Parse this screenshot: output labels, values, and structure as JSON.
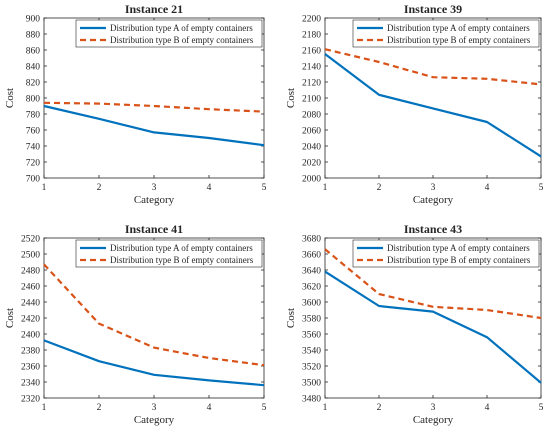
{
  "chart_data": [
    {
      "type": "line",
      "title": "Instance 21",
      "xlabel": "Category",
      "ylabel": "Cost",
      "x": [
        1,
        2,
        3,
        4,
        5
      ],
      "xlim": [
        1,
        5
      ],
      "ylim": [
        700,
        900
      ],
      "yticks": [
        700,
        720,
        740,
        760,
        780,
        800,
        820,
        840,
        860,
        880,
        900
      ],
      "legend_position": "top-right",
      "grid": false,
      "series": [
        {
          "name": "Distribution type A of empty containers",
          "values": [
            790,
            774,
            757,
            750,
            741
          ],
          "color": "#0072BD",
          "style": "solid"
        },
        {
          "name": "Distribution type B of empty containers",
          "values": [
            794,
            793,
            790,
            786,
            783
          ],
          "color": "#D95319",
          "style": "dashed"
        }
      ]
    },
    {
      "type": "line",
      "title": "Instance 39",
      "xlabel": "Category",
      "ylabel": "Cost",
      "x": [
        1,
        2,
        3,
        4,
        5
      ],
      "xlim": [
        1,
        5
      ],
      "ylim": [
        2000,
        2200
      ],
      "yticks": [
        2000,
        2020,
        2040,
        2060,
        2080,
        2100,
        2120,
        2140,
        2160,
        2180,
        2200
      ],
      "legend_position": "top-right",
      "grid": false,
      "series": [
        {
          "name": "Distribution type A of empty containers",
          "values": [
            2155,
            2104,
            2087,
            2070,
            2027
          ],
          "color": "#0072BD",
          "style": "solid"
        },
        {
          "name": "Distribution type B of empty containers",
          "values": [
            2161,
            2145,
            2126,
            2124,
            2117
          ],
          "color": "#D95319",
          "style": "dashed"
        }
      ]
    },
    {
      "type": "line",
      "title": "Instance 41",
      "xlabel": "Category",
      "ylabel": "Cost",
      "x": [
        1,
        2,
        3,
        4,
        5
      ],
      "xlim": [
        1,
        5
      ],
      "ylim": [
        2320,
        2520
      ],
      "yticks": [
        2320,
        2340,
        2360,
        2380,
        2400,
        2420,
        2440,
        2460,
        2480,
        2500,
        2520
      ],
      "legend_position": "top-right",
      "grid": false,
      "series": [
        {
          "name": "Distribution type A of empty containers",
          "values": [
            2392,
            2366,
            2349,
            2342,
            2336
          ],
          "color": "#0072BD",
          "style": "solid"
        },
        {
          "name": "Distribution type B of empty containers",
          "values": [
            2487,
            2413,
            2383,
            2370,
            2361
          ],
          "color": "#D95319",
          "style": "dashed"
        }
      ]
    },
    {
      "type": "line",
      "title": "Instance 43",
      "xlabel": "Category",
      "ylabel": "Cost",
      "x": [
        1,
        2,
        3,
        4,
        5
      ],
      "xlim": [
        1,
        5
      ],
      "ylim": [
        3480,
        3680
      ],
      "yticks": [
        3480,
        3500,
        3520,
        3540,
        3560,
        3580,
        3600,
        3620,
        3640,
        3660,
        3680
      ],
      "legend_position": "top-right",
      "grid": false,
      "series": [
        {
          "name": "Distribution type A of empty containers",
          "values": [
            3638,
            3595,
            3588,
            3556,
            3499
          ],
          "color": "#0072BD",
          "style": "solid"
        },
        {
          "name": "Distribution type B of empty containers",
          "values": [
            3666,
            3610,
            3594,
            3590,
            3580
          ],
          "color": "#D95319",
          "style": "dashed"
        }
      ]
    }
  ]
}
